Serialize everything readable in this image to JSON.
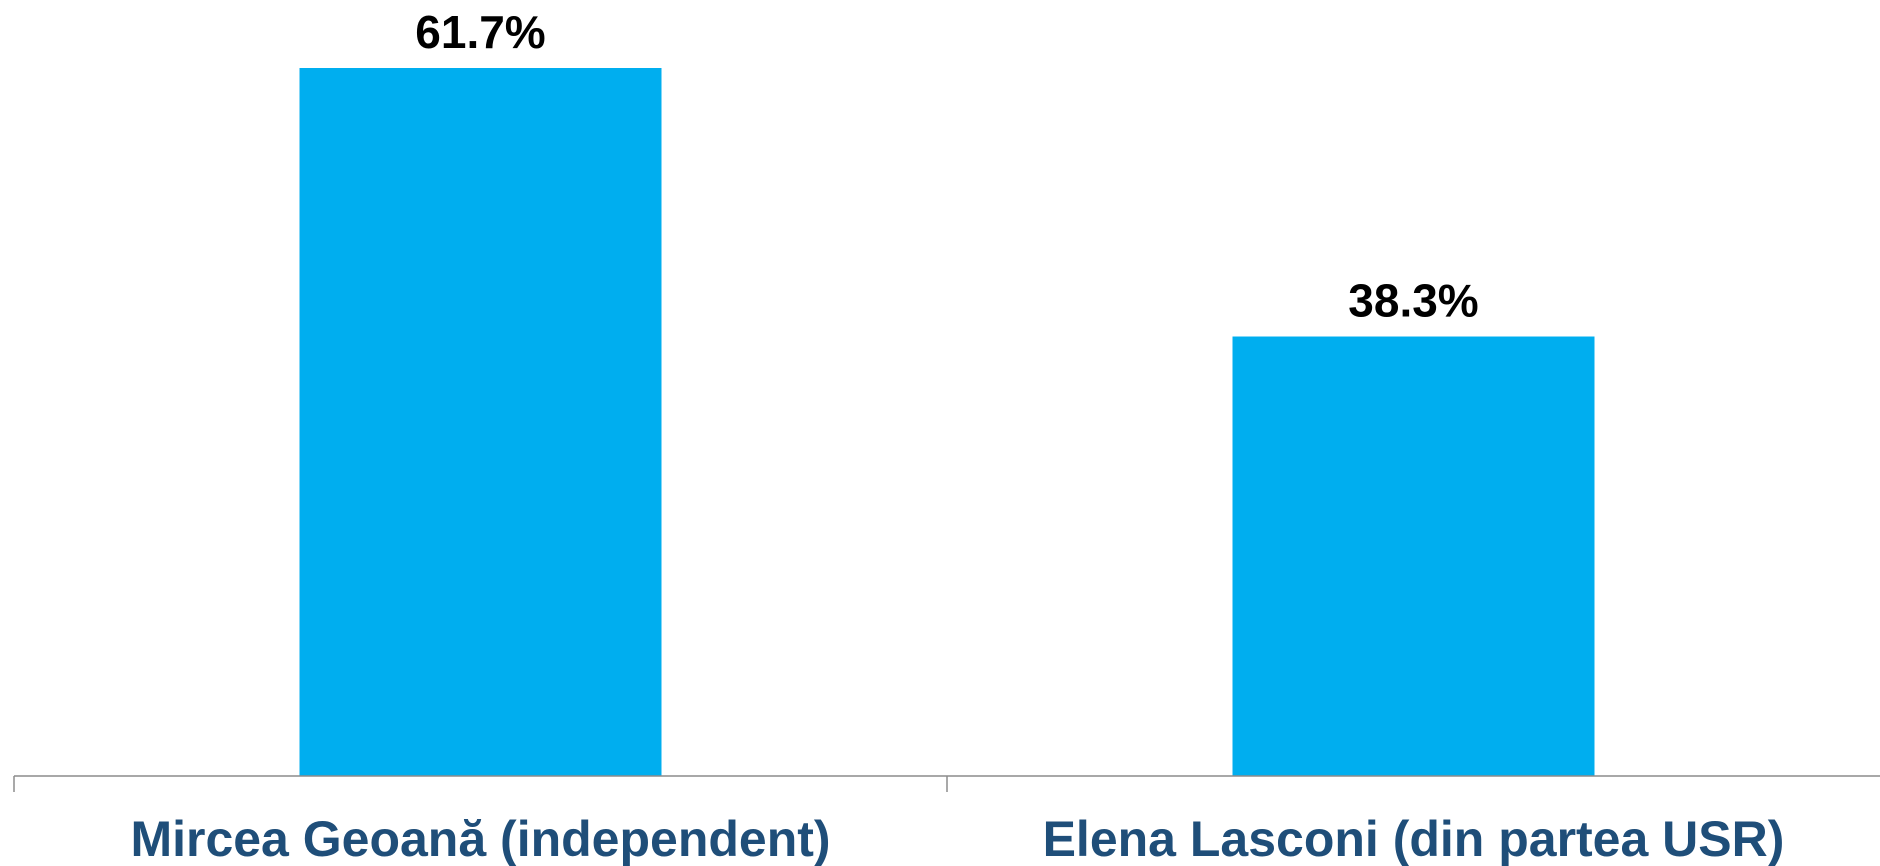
{
  "chart_data": {
    "type": "bar",
    "categories": [
      "Mircea Geoană (independent)",
      "Elena Lasconi (din partea USR)"
    ],
    "values": [
      61.7,
      38.3
    ],
    "value_labels": [
      "61.7%",
      "38.3%"
    ],
    "title": "",
    "xlabel": "",
    "ylabel": "",
    "ylim": [
      0,
      61.7
    ],
    "grid": false,
    "legend": "none",
    "colors": {
      "bar": "#00AEEF",
      "category_text": "#1F4E79",
      "value_text": "#000000",
      "axis": "#8C8C8C"
    }
  }
}
